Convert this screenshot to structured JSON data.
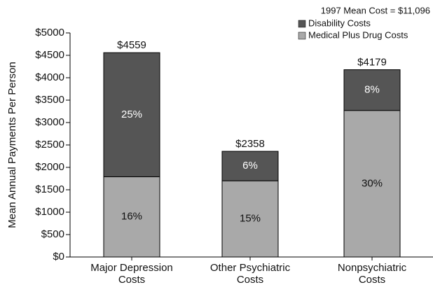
{
  "chart_data": {
    "type": "stacked_bar",
    "y_label": "Mean Annual Payments Per Person",
    "legend_title": "1997 Mean Cost = $11,096",
    "categories": [
      [
        "Major Depression",
        "Costs"
      ],
      [
        "Other Psychiatric",
        "Costs"
      ],
      [
        "Nonpsychiatric",
        "Costs"
      ]
    ],
    "series": [
      {
        "name": "Medical Plus Drug Costs",
        "color": "#a9a9a9",
        "values": [
          1790,
          1700,
          3270
        ],
        "segment_labels": [
          "16%",
          "15%",
          "30%"
        ]
      },
      {
        "name": "Disability Costs",
        "color": "#555555",
        "values": [
          2769,
          658,
          909
        ],
        "segment_labels": [
          "25%",
          "6%",
          "8%"
        ]
      }
    ],
    "total_labels": [
      "$4559",
      "$2358",
      "$4179"
    ],
    "ylim": [
      0,
      5000
    ],
    "yticks": [
      {
        "value": 0,
        "label": "$0"
      },
      {
        "value": 500,
        "label": "$500"
      },
      {
        "value": 1000,
        "label": "$1000"
      },
      {
        "value": 1500,
        "label": "$1500"
      },
      {
        "value": 2000,
        "label": "$2000"
      },
      {
        "value": 2500,
        "label": "$2500"
      },
      {
        "value": 3000,
        "label": "$3000"
      },
      {
        "value": 3500,
        "label": "$3500"
      },
      {
        "value": 4000,
        "label": "$4000"
      },
      {
        "value": 4500,
        "label": "$4500"
      },
      {
        "value": 5000,
        "label": "$5000"
      }
    ],
    "grid": false
  }
}
